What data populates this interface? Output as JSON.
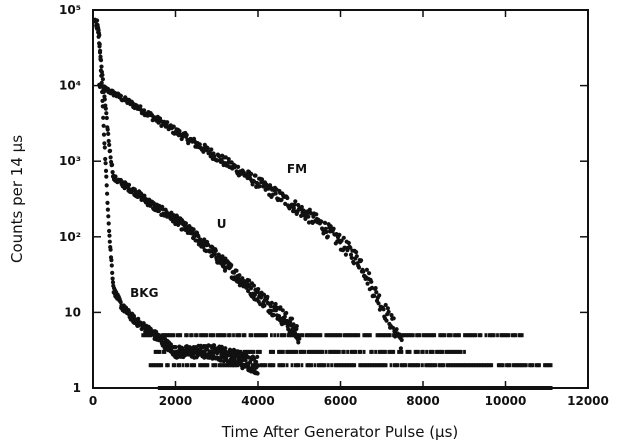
{
  "chart_data": {
    "type": "scatter",
    "title": "",
    "xlabel": "Time After Generator Pulse (μs)",
    "ylabel": "Counts per 14 μs",
    "xlim": [
      0,
      12000
    ],
    "ylim": [
      1,
      100000
    ],
    "yscale": "log",
    "xticks": [
      0,
      2000,
      4000,
      6000,
      8000,
      10000,
      12000
    ],
    "xtick_labels": [
      "0",
      "2000",
      "4000",
      "6000",
      "8000",
      "10000",
      "12000"
    ],
    "yticks": [
      1,
      10,
      100,
      1000,
      10000,
      100000
    ],
    "ytick_labels": [
      "1",
      "10",
      "10²",
      "10³",
      "10⁴",
      "10⁵"
    ],
    "grid": false,
    "legend": "none",
    "color": "#111111",
    "series": [
      {
        "name": "FM",
        "x": [
          150,
          500,
          1000,
          1500,
          2000,
          2500,
          3000,
          3500,
          4000,
          4500,
          5000,
          5500,
          6000,
          6500,
          6800,
          7200,
          7500
        ],
        "y": [
          10000,
          7900,
          5500,
          3700,
          2500,
          1700,
          1150,
          780,
          520,
          350,
          230,
          150,
          85,
          45,
          20,
          8,
          4
        ]
      },
      {
        "name": "U",
        "x": [
          100,
          250,
          400,
          500,
          1000,
          1500,
          2000,
          2500,
          3000,
          3500,
          4000,
          4500,
          5000
        ],
        "y": [
          70000,
          10000,
          1500,
          600,
          400,
          250,
          170,
          100,
          55,
          30,
          17,
          10,
          5
        ]
      },
      {
        "name": "BKG",
        "x": [
          50,
          150,
          300,
          400,
          500,
          700,
          1000,
          1500,
          2000,
          3000,
          4000
        ],
        "y": [
          70000,
          50000,
          1000,
          100,
          20,
          12,
          8,
          5,
          3,
          3,
          2
        ]
      }
    ],
    "floor_bands": [
      {
        "x_range": [
          1600,
          11100
        ],
        "y": 1
      },
      {
        "x_range": [
          1300,
          11100
        ],
        "y": 2
      },
      {
        "x_range": [
          1500,
          9000
        ],
        "y": 3
      },
      {
        "x_range": [
          1200,
          10400
        ],
        "y": 5
      }
    ]
  }
}
